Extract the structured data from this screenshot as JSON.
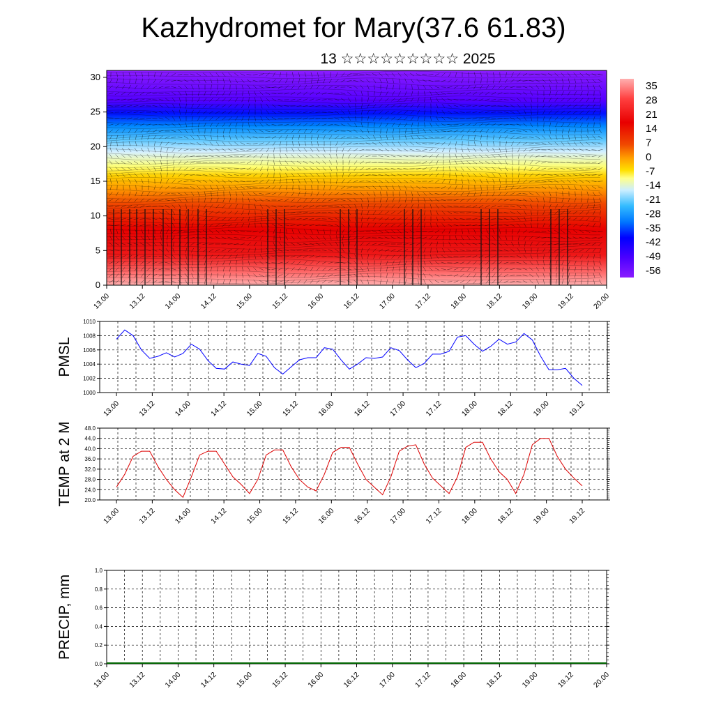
{
  "title": "Kazhydromet for Mary(37.6 61.83)",
  "subtitle": "13 ☆☆☆☆☆☆☆☆☆ 2025",
  "time_ticks": [
    "13.00",
    "13.12",
    "14.00",
    "14.12",
    "15.00",
    "15.12",
    "16.00",
    "16.12",
    "17.00",
    "17.12",
    "18.00",
    "18.12",
    "19.00",
    "19.12",
    "20.00"
  ],
  "chart_data": [
    {
      "type": "heatmap",
      "name": "cross-section",
      "y": [
        0,
        5,
        10,
        15,
        20,
        25,
        30
      ],
      "ylim": [
        0,
        31
      ],
      "colorbar": {
        "labels": [
          "35",
          "28",
          "21",
          "14",
          "7",
          "0",
          "-7",
          "-14",
          "-21",
          "-28",
          "-35",
          "-42",
          "-49",
          "-56"
        ],
        "colors": [
          "#ffb0b0",
          "#ff5a5a",
          "#ee1010",
          "#e60000",
          "#f24a00",
          "#ff9900",
          "#ffd200",
          "#ffff66",
          "#cceeff",
          "#33bbff",
          "#0077ff",
          "#0000ff",
          "#4b00ff",
          "#8b1cff"
        ]
      }
    },
    {
      "type": "line",
      "ylabel": "PMSL",
      "ylim": [
        1000,
        1010
      ],
      "yticks": [
        "1000",
        "1002",
        "1004",
        "1006",
        "1008",
        "1010"
      ],
      "color": "#0000ff",
      "values": [
        1007.5,
        1008.8,
        1008.0,
        1006.0,
        1004.8,
        1005.1,
        1005.6,
        1005.0,
        1005.5,
        1006.8,
        1006.1,
        1004.5,
        1003.4,
        1003.3,
        1004.3,
        1004.0,
        1003.8,
        1005.5,
        1005.1,
        1003.5,
        1002.6,
        1003.6,
        1004.6,
        1004.9,
        1004.9,
        1006.3,
        1006.1,
        1004.6,
        1003.3,
        1004.0,
        1004.9,
        1004.8,
        1005.0,
        1006.3,
        1005.9,
        1004.6,
        1003.5,
        1004.1,
        1005.4,
        1005.4,
        1005.8,
        1007.8,
        1008.0,
        1006.8,
        1005.8,
        1006.5,
        1007.5,
        1006.8,
        1007.1,
        1008.3,
        1007.4,
        1005.1,
        1003.2,
        1003.2,
        1003.4,
        1002.0,
        1001.0
      ]
    },
    {
      "type": "line",
      "ylabel": "TEMP at 2 M",
      "ylim": [
        20,
        48
      ],
      "yticks": [
        "20.0",
        "24.0",
        "28.0",
        "32.0",
        "36.0",
        "40.0",
        "44.0",
        "48.0"
      ],
      "color": "#dd0000",
      "values": [
        25.0,
        30.0,
        37.0,
        39.0,
        39.0,
        33.0,
        28.0,
        24.0,
        21.0,
        29.0,
        37.5,
        39.0,
        39.0,
        34.0,
        29.0,
        26.0,
        22.5,
        28.0,
        37.5,
        39.5,
        39.5,
        33.0,
        28.0,
        25.0,
        23.5,
        30.0,
        38.5,
        40.5,
        40.5,
        34.0,
        28.0,
        25.0,
        22.0,
        29.0,
        39.0,
        41.0,
        41.5,
        34.0,
        28.5,
        25.5,
        22.5,
        29.0,
        40.5,
        42.5,
        42.5,
        36.0,
        31.0,
        28.0,
        22.5,
        30.0,
        41.5,
        44.0,
        44.0,
        37.0,
        32.0,
        28.5,
        25.5
      ]
    },
    {
      "type": "bar",
      "ylabel": "PRECIP, mm",
      "ylim": [
        0,
        1
      ],
      "yticks": [
        "0.0",
        "0.2",
        "0.4",
        "0.6",
        "0.8",
        "1.0"
      ],
      "values": []
    }
  ]
}
